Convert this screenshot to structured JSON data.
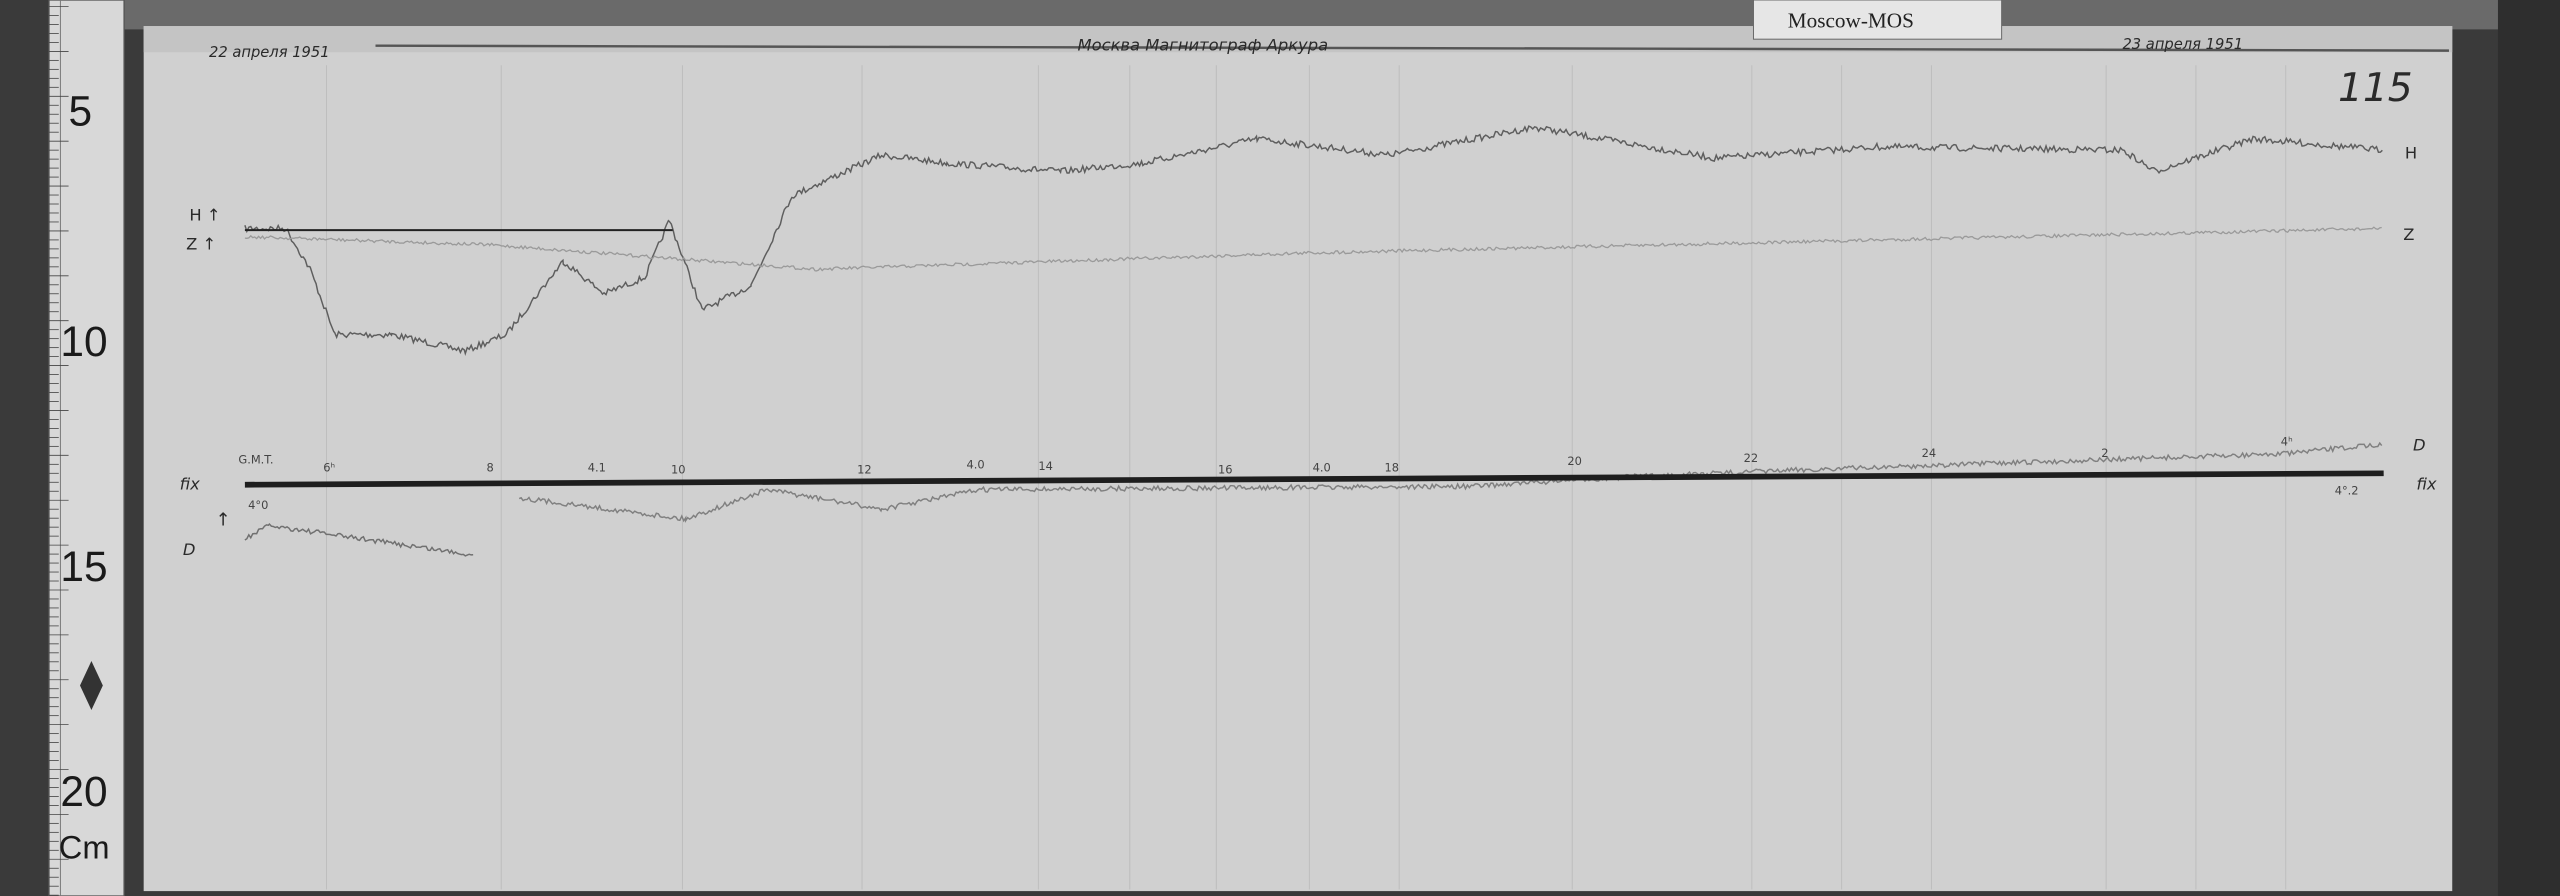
{
  "label_card": "Moscow-MOS",
  "sheet_number": "115",
  "header": {
    "date_left": "22 апреля 1951",
    "title": "Москва  Магнитограф  Аркура",
    "date_right": "23 апреля 1951"
  },
  "ruler": {
    "marks": [
      "5",
      "10",
      "15",
      "20"
    ],
    "unit": "Cm"
  },
  "trace_labels": {
    "left_h": "H ↑",
    "left_z": "Z ↑",
    "left_base": "fix",
    "left_d": "D",
    "left_d_arrow": "↑",
    "right_h": "H",
    "right_z": "Z",
    "right_d": "D",
    "right_base": "fix"
  },
  "time_scale": {
    "gmt": "G.M.T.",
    "hours": [
      "6ʰ",
      "8",
      "10",
      "12",
      "14",
      "16",
      "18",
      "20",
      "22",
      "24",
      "2",
      "4ʰ"
    ],
    "temps": [
      "4.1",
      "4.0",
      "4.0"
    ],
    "start_value": "4°0",
    "end_value": "4°.2"
  },
  "colors": {
    "paper": "#cfcfcf",
    "trace": "#6a6a6a",
    "baseline": "#1e1e1e"
  }
}
